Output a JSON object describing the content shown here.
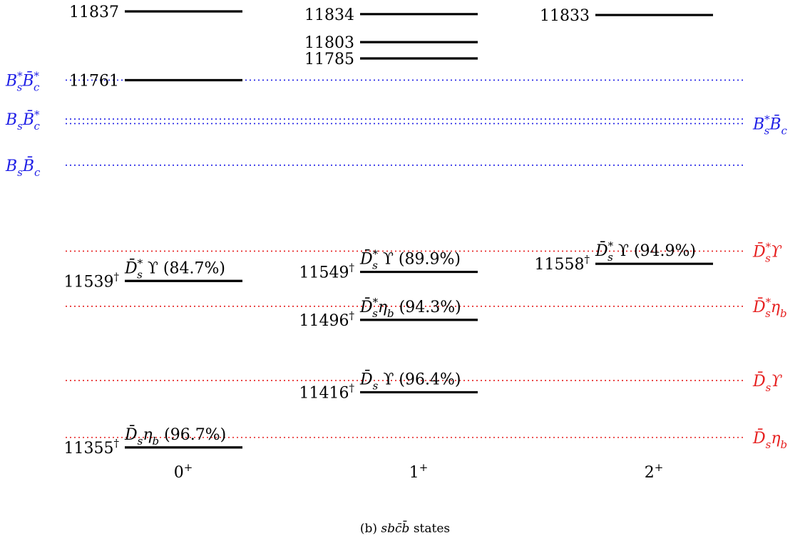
{
  "colors": {
    "level": "#000000",
    "meson_b_threshold": "#1f1fe6",
    "meson_other_threshold": "#e61f1f"
  },
  "columns": [
    {
      "label_base": "0",
      "label_sup": "+",
      "levels": [
        {
          "mass": 11837,
          "text": "11837",
          "dagger": "",
          "decay_prefix": "",
          "decay_suffix": ""
        },
        {
          "mass": 11761,
          "text": "11761",
          "dagger": "",
          "decay_prefix": "",
          "decay_suffix": ""
        },
        {
          "mass": 11539,
          "text": "11539",
          "dagger": "†",
          "decay_prefix": "D̄",
          "decay_sub": "s",
          "decay_sup": "*",
          "decay_suffix": "ϒ (84.7%)"
        },
        {
          "mass": 11355,
          "text": "11355",
          "dagger": "†",
          "decay_prefix": "D̄",
          "decay_sub": "s",
          "decay_sup": "",
          "decay_suffix": "η",
          "decay_suffix_sub": "b",
          "decay_tail": " (96.7%)"
        }
      ]
    },
    {
      "label_base": "1",
      "label_sup": "+",
      "levels": [
        {
          "mass": 11834,
          "text": "11834",
          "dagger": ""
        },
        {
          "mass": 11803,
          "text": "11803",
          "dagger": ""
        },
        {
          "mass": 11785,
          "text": "11785",
          "dagger": ""
        },
        {
          "mass": 11549,
          "text": "11549",
          "dagger": "†",
          "decay_prefix": "D̄",
          "decay_sub": "s",
          "decay_sup": "*",
          "decay_suffix": "ϒ (89.9%)"
        },
        {
          "mass": 11496,
          "text": "11496",
          "dagger": "†",
          "decay_prefix": "D̄",
          "decay_sub": "s",
          "decay_sup": "*",
          "decay_suffix": "η",
          "decay_suffix_sub": "b",
          "decay_tail": " (94.3%)"
        },
        {
          "mass": 11416,
          "text": "11416",
          "dagger": "†",
          "decay_prefix": "D̄",
          "decay_sub": "s",
          "decay_sup": "",
          "decay_suffix": "ϒ (96.4%)"
        }
      ]
    },
    {
      "label_base": "2",
      "label_sup": "+",
      "levels": [
        {
          "mass": 11833,
          "text": "11833",
          "dagger": ""
        },
        {
          "mass": 11558,
          "text": "11558",
          "dagger": "†",
          "decay_prefix": "D̄",
          "decay_sub": "s",
          "decay_sup": "*",
          "decay_suffix": "ϒ (94.9%)"
        }
      ]
    }
  ],
  "thresholds": [
    {
      "id": "BsstarBcstar",
      "mass": 11761,
      "color_key": "meson_b_threshold",
      "side": "left",
      "parts": [
        {
          "t": "B",
          "sub": "s",
          "sup": "*"
        },
        {
          "t": "B̄",
          "sub": "c",
          "sup": "*"
        }
      ]
    },
    {
      "id": "BsBcstar",
      "mass": 11718,
      "color_key": "meson_b_threshold",
      "side": "left",
      "parts": [
        {
          "t": "B",
          "sub": "s",
          "sup": ""
        },
        {
          "t": "B̄",
          "sub": "c",
          "sup": "*"
        }
      ]
    },
    {
      "id": "BsstarBc",
      "mass": 11713,
      "color_key": "meson_b_threshold",
      "side": "right",
      "parts": [
        {
          "t": "B",
          "sub": "s",
          "sup": "*"
        },
        {
          "t": "B̄",
          "sub": "c",
          "sup": ""
        }
      ]
    },
    {
      "id": "BsBc",
      "mass": 11667,
      "color_key": "meson_b_threshold",
      "side": "left",
      "parts": [
        {
          "t": "B",
          "sub": "s",
          "sup": ""
        },
        {
          "t": "B̄",
          "sub": "c",
          "sup": ""
        }
      ]
    },
    {
      "id": "DsstarUpsilon",
      "mass": 11572,
      "color_key": "meson_other_threshold",
      "side": "right",
      "parts": [
        {
          "t": "D̄",
          "sub": "s",
          "sup": "*"
        },
        {
          "t": "ϒ",
          "sub": "",
          "sup": ""
        }
      ]
    },
    {
      "id": "DsstarEtab",
      "mass": 11511,
      "color_key": "meson_other_threshold",
      "side": "right",
      "parts": [
        {
          "t": "D̄",
          "sub": "s",
          "sup": "*"
        },
        {
          "t": "η",
          "sub": "b",
          "sup": ""
        }
      ]
    },
    {
      "id": "DsUpsilon",
      "mass": 11429,
      "color_key": "meson_other_threshold",
      "side": "right",
      "parts": [
        {
          "t": "D̄",
          "sub": "s",
          "sup": ""
        },
        {
          "t": "ϒ",
          "sub": "",
          "sup": ""
        }
      ]
    },
    {
      "id": "DsEtab",
      "mass": 11366,
      "color_key": "meson_other_threshold",
      "side": "right",
      "parts": [
        {
          "t": "D̄",
          "sub": "s",
          "sup": ""
        },
        {
          "t": "η",
          "sub": "b",
          "sup": ""
        }
      ]
    }
  ],
  "caption": {
    "prefix": "(b) ",
    "math": "sbc̄b̄",
    "suffix": " states"
  }
}
